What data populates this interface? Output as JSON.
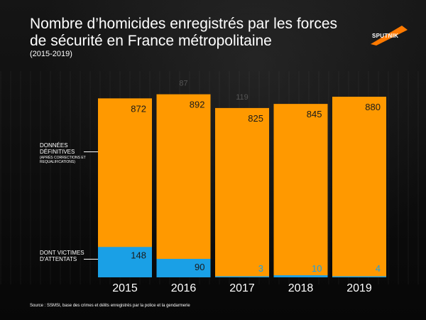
{
  "title": "Nombre d’homicides enregistrés par les forces de sécurité en France métropolitaine",
  "subtitle": "(2015-2019)",
  "brand": {
    "name": "SPUTNIK",
    "color": "#ff7a00"
  },
  "labels": {
    "final_data": "DONNÉES DÉFINITIVES",
    "final_data_note": "(APRÈS CORRECTIONS ET REQUALIFICATIONS)",
    "terror_victims": "DONT VICTIMES D'ATTENTATS"
  },
  "source": "Source : SSMSI, base des crimes et délits enregistrés par la police et la gendarmerie",
  "colors": {
    "total": "#ff9900",
    "terror": "#1aa0e6",
    "year_label": "#ffffff",
    "value_dark": "#1a1a1a",
    "value_blue": "#1aa0e6"
  },
  "chart_data": {
    "type": "bar",
    "title": "Nombre d’homicides enregistrés par les forces de sécurité en France métropolitaine",
    "categories": [
      "2015",
      "2016",
      "2017",
      "2018",
      "2019"
    ],
    "series": [
      {
        "name": "Données définitives",
        "values": [
          872,
          892,
          825,
          845,
          880
        ]
      },
      {
        "name": "Dont victimes d'attentats",
        "values": [
          148,
          90,
          3,
          10,
          4
        ]
      }
    ],
    "partially_hidden_labels": [
      "87",
      "119"
    ],
    "xlabel": "",
    "ylabel": "",
    "ylim": [
      0,
      900
    ]
  }
}
